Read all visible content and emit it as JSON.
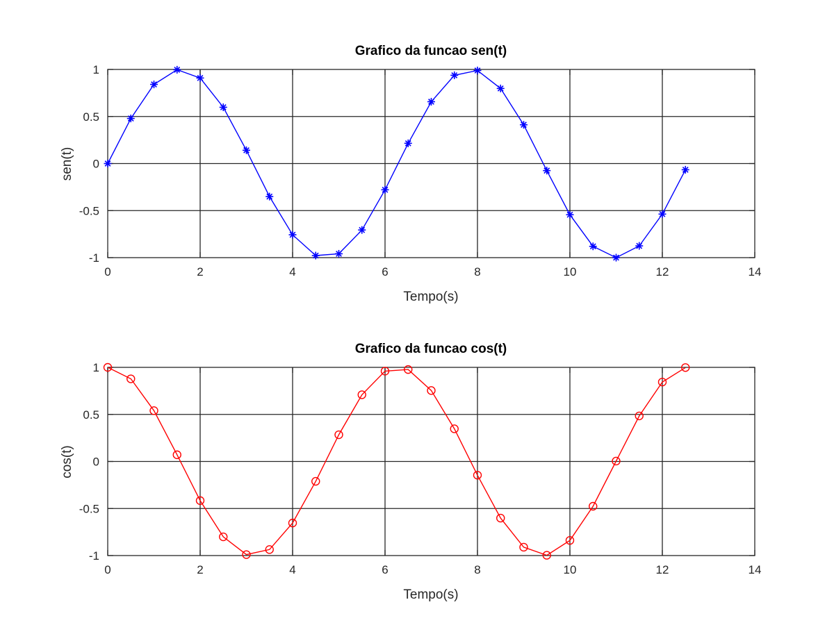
{
  "chart_data": [
    {
      "type": "line",
      "title": "Grafico da funcao sen(t)",
      "xlabel": "Tempo(s)",
      "ylabel": "sen(t)",
      "xlim": [
        0,
        14
      ],
      "ylim": [
        -1,
        1
      ],
      "xticks": [
        "0",
        "2",
        "4",
        "6",
        "8",
        "10",
        "12",
        "14"
      ],
      "yticks": [
        "-1",
        "-0.5",
        "0",
        "0.5",
        "1"
      ],
      "grid": true,
      "series": [
        {
          "color": "#0000ff",
          "marker": "asterisk",
          "x": [
            0,
            0.5,
            1,
            1.5,
            2,
            2.5,
            3,
            3.5,
            4,
            4.5,
            5,
            5.5,
            6,
            6.5,
            7,
            7.5,
            8,
            8.5,
            9,
            9.5,
            10,
            10.5,
            11,
            11.5,
            12,
            12.5
          ],
          "y": [
            0,
            0.479,
            0.841,
            0.997,
            0.909,
            0.598,
            0.141,
            -0.351,
            -0.757,
            -0.978,
            -0.959,
            -0.706,
            -0.279,
            0.215,
            0.657,
            0.938,
            0.989,
            0.798,
            0.412,
            -0.075,
            -0.544,
            -0.88,
            -1.0,
            -0.875,
            -0.537,
            -0.066
          ]
        }
      ]
    },
    {
      "type": "line",
      "title": "Grafico da funcao cos(t)",
      "xlabel": "Tempo(s)",
      "ylabel": "cos(t)",
      "xlim": [
        0,
        14
      ],
      "ylim": [
        -1,
        1
      ],
      "xticks": [
        "0",
        "2",
        "4",
        "6",
        "8",
        "10",
        "12",
        "14"
      ],
      "yticks": [
        "-1",
        "-0.5",
        "0",
        "0.5",
        "1"
      ],
      "grid": true,
      "series": [
        {
          "color": "#ff0000",
          "marker": "circle",
          "x": [
            0,
            0.5,
            1,
            1.5,
            2,
            2.5,
            3,
            3.5,
            4,
            4.5,
            5,
            5.5,
            6,
            6.5,
            7,
            7.5,
            8,
            8.5,
            9,
            9.5,
            10,
            10.5,
            11,
            11.5,
            12,
            12.5
          ],
          "y": [
            1,
            0.878,
            0.54,
            0.071,
            -0.416,
            -0.801,
            -0.99,
            -0.936,
            -0.654,
            -0.211,
            0.284,
            0.709,
            0.96,
            0.977,
            0.754,
            0.347,
            -0.146,
            -0.602,
            -0.911,
            -0.997,
            -0.839,
            -0.476,
            0.004,
            0.484,
            0.844,
            0.998
          ]
        }
      ]
    }
  ]
}
